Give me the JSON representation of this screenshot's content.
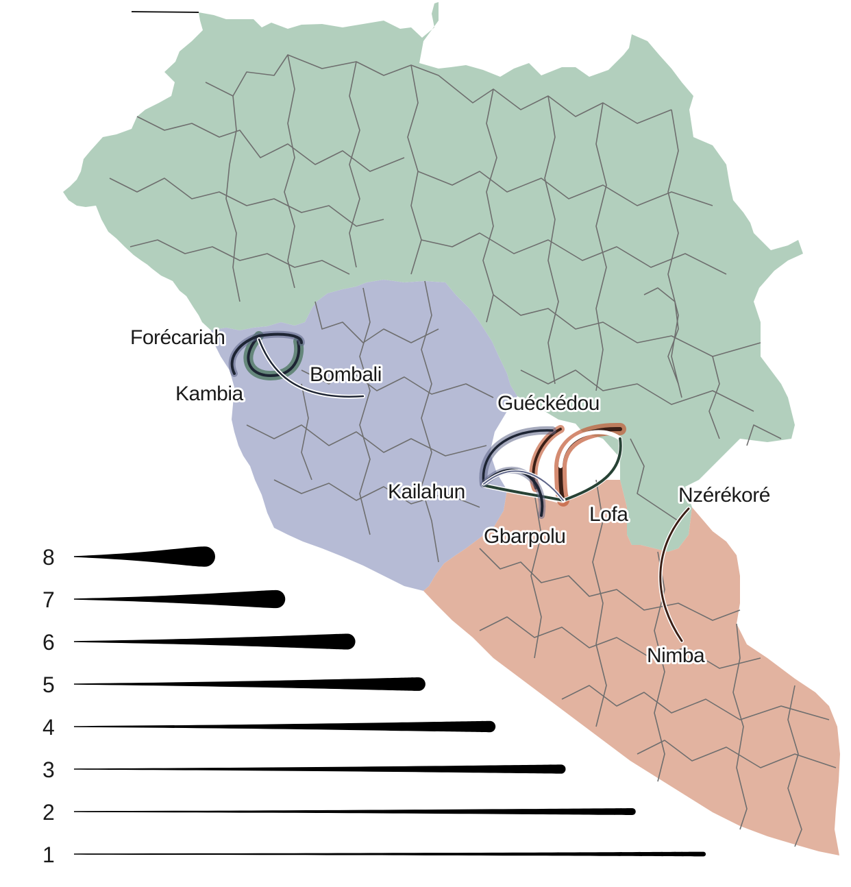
{
  "colors": {
    "guinea": "#b2cfbd",
    "sierra_leone": "#b6bbd5",
    "liberia": "#e2b3a0",
    "admin_border": "#6e6e6e",
    "halo_guinea": "#3b6b4b",
    "halo_sierra_leone": "#5d6487",
    "halo_liberia": "#c25a35",
    "flow_dark": "#1d2433",
    "legend_ink": "#000000"
  },
  "countries": [
    {
      "id": "guinea",
      "color_key": "guinea"
    },
    {
      "id": "sierra_leone",
      "color_key": "sierra_leone"
    },
    {
      "id": "liberia",
      "color_key": "liberia"
    }
  ],
  "places": [
    {
      "id": "forecariah",
      "name": "Forécariah"
    },
    {
      "id": "kambia",
      "name": "Kambia"
    },
    {
      "id": "bombali",
      "name": "Bombali"
    },
    {
      "id": "gueckedou",
      "name": "Guéckédou"
    },
    {
      "id": "kailahun",
      "name": "Kailahun"
    },
    {
      "id": "gbarpolu",
      "name": "Gbarpolu"
    },
    {
      "id": "lofa",
      "name": "Lofa"
    },
    {
      "id": "nzerekore",
      "name": "Nzérékoré"
    },
    {
      "id": "nimba",
      "name": "Nimba"
    }
  ],
  "flows": [
    {
      "from": "forecariah",
      "to": "bombali",
      "origin_country": "guinea"
    },
    {
      "from": "kambia",
      "to": "forecariah",
      "origin_country": "sierra_leone"
    },
    {
      "from": "kambia",
      "to": "bombali",
      "origin_country": "sierra_leone"
    },
    {
      "from": "gueckedou",
      "to": "kailahun",
      "origin_country": "guinea"
    },
    {
      "from": "gueckedou",
      "to": "lofa",
      "origin_country": "guinea"
    },
    {
      "from": "kailahun",
      "to": "gueckedou",
      "origin_country": "sierra_leone"
    },
    {
      "from": "kailahun",
      "to": "lofa",
      "origin_country": "sierra_leone"
    },
    {
      "from": "kailahun",
      "to": "gbarpolu",
      "origin_country": "sierra_leone"
    },
    {
      "from": "lofa",
      "to": "gueckedou",
      "origin_country": "liberia"
    },
    {
      "from": "lofa",
      "to": "kailahun",
      "origin_country": "liberia"
    },
    {
      "from": "nzerekore",
      "to": "nimba",
      "origin_country": "guinea"
    }
  ],
  "legend": {
    "items": [
      {
        "label": "8",
        "value": 8
      },
      {
        "label": "7",
        "value": 7
      },
      {
        "label": "6",
        "value": 6
      },
      {
        "label": "5",
        "value": 5
      },
      {
        "label": "4",
        "value": 4
      },
      {
        "label": "3",
        "value": 3
      },
      {
        "label": "2",
        "value": 2
      },
      {
        "label": "1",
        "value": 1
      }
    ]
  }
}
